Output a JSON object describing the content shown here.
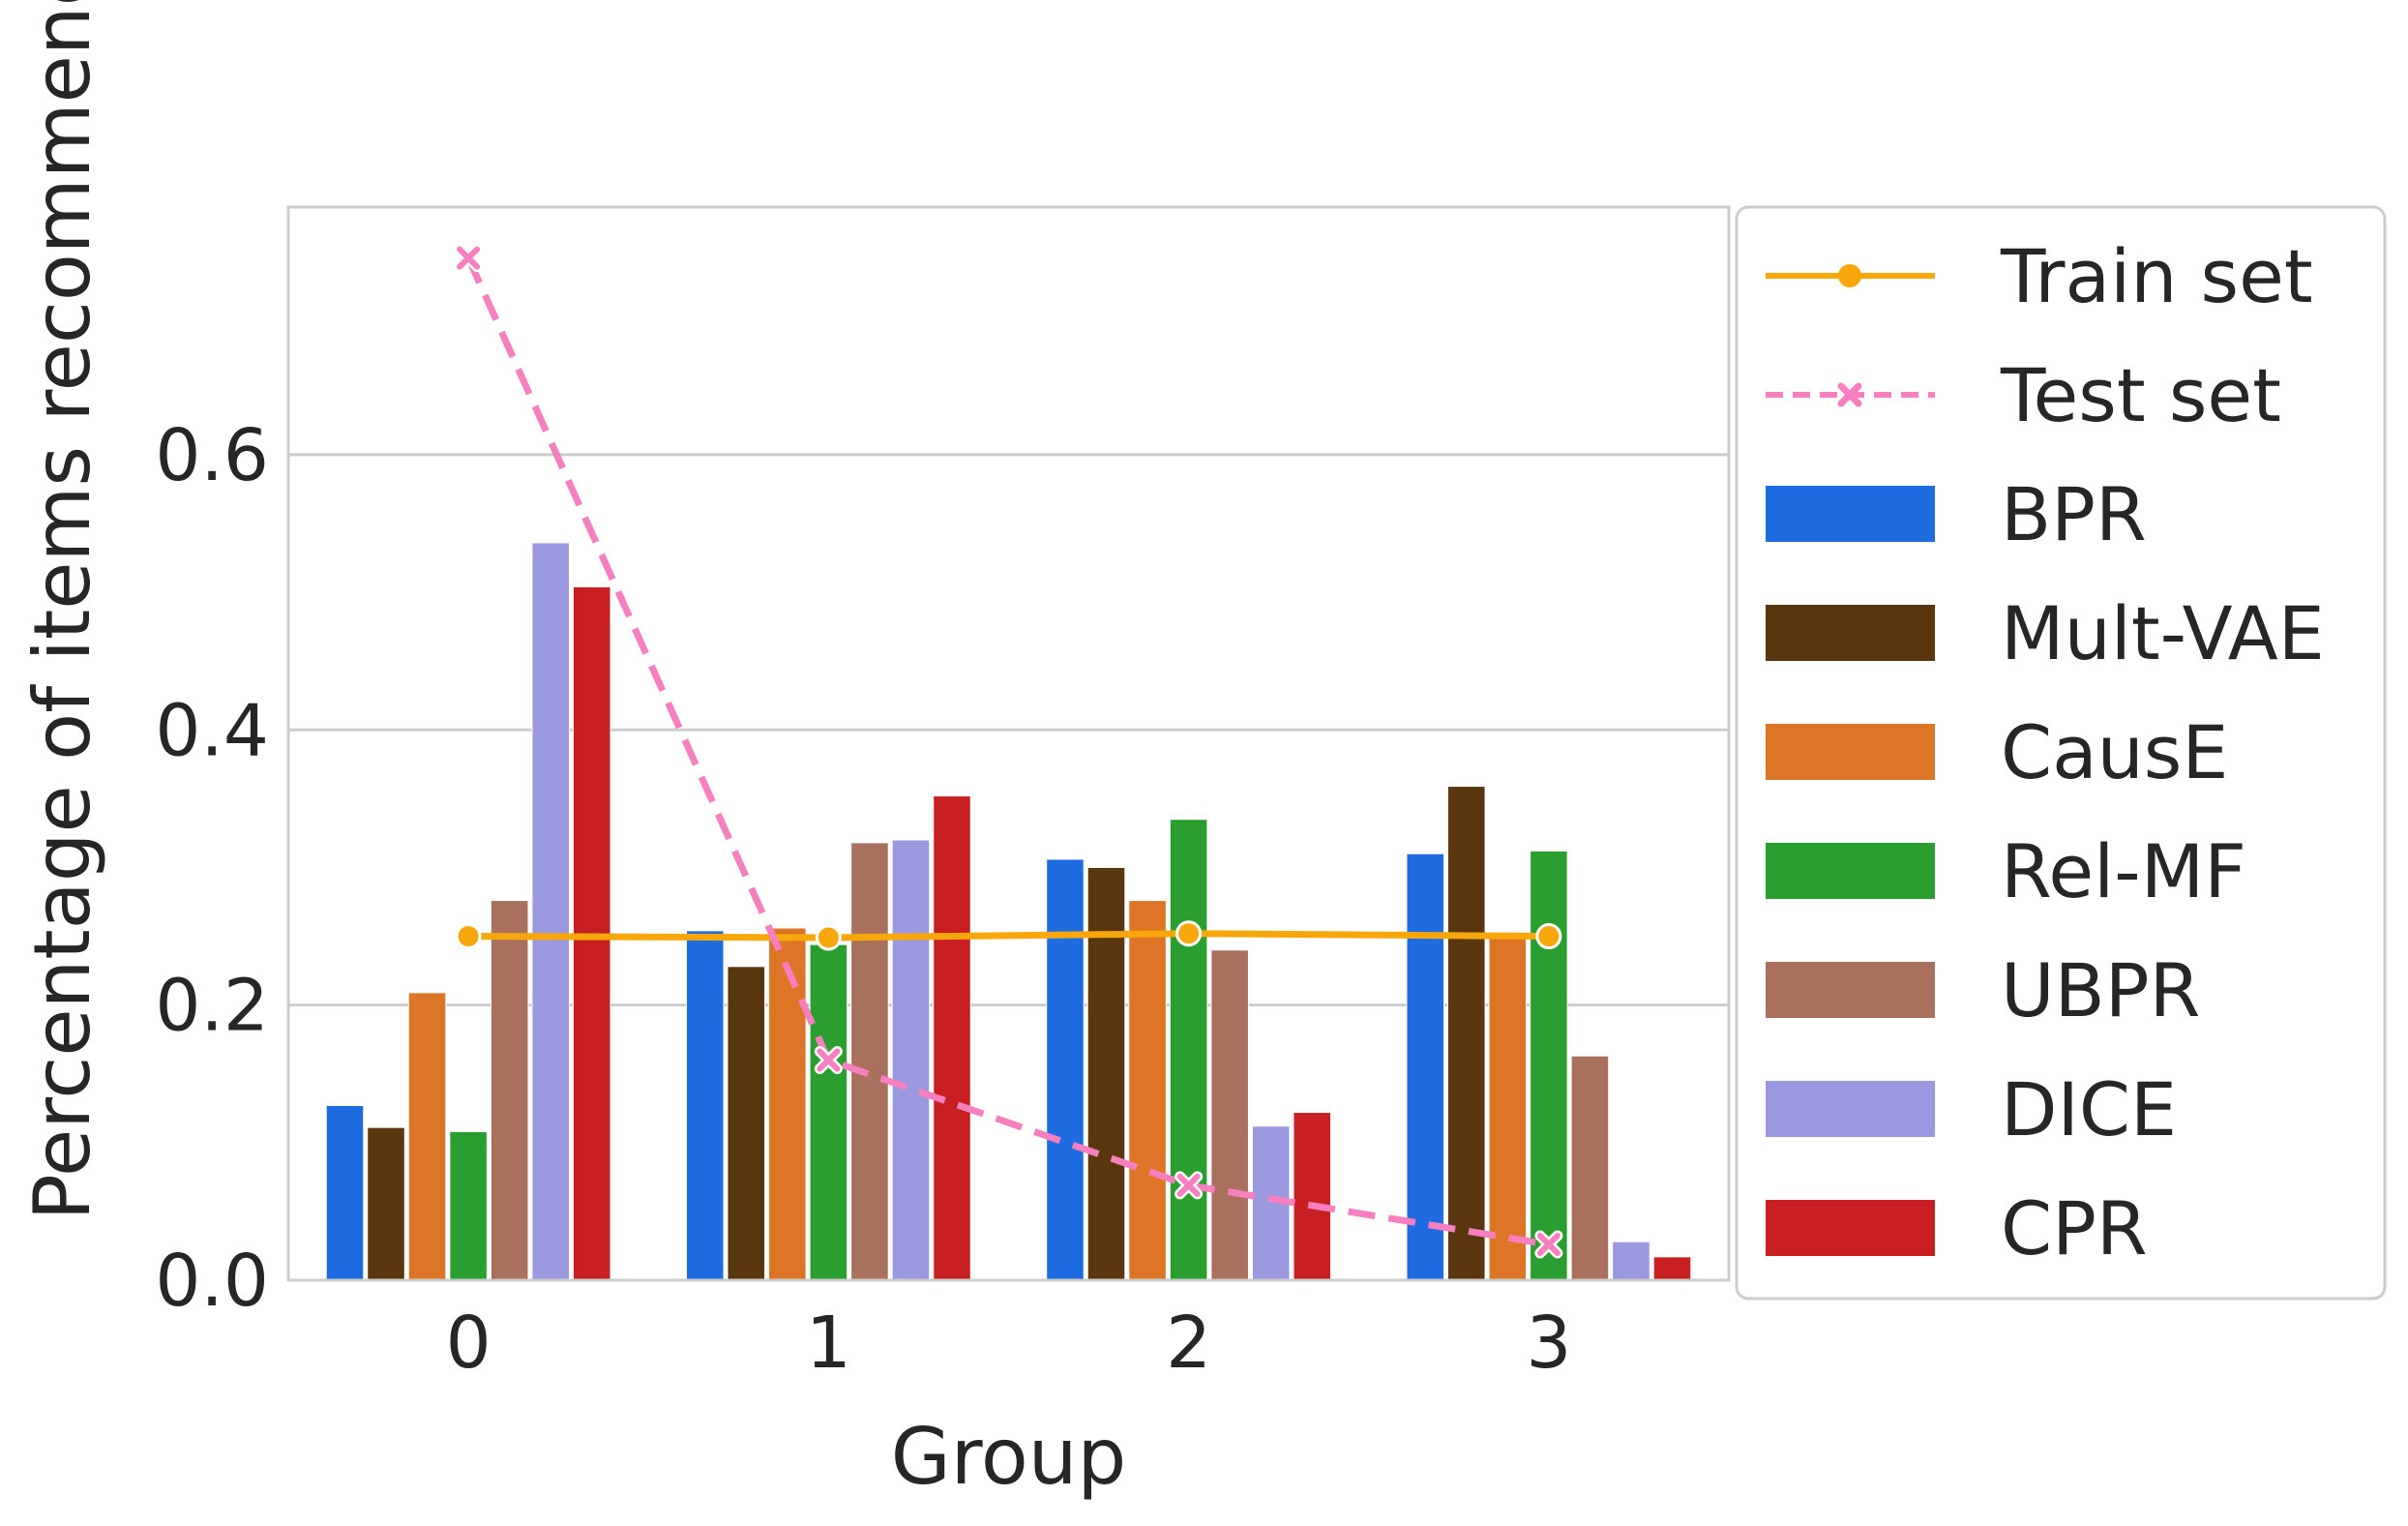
{
  "chart_data": {
    "type": "bar",
    "title": "",
    "xlabel": "Group",
    "ylabel": "Percentage of items recommended",
    "categories": [
      "0",
      "1",
      "2",
      "3"
    ],
    "ylim": [
      0,
      0.78
    ],
    "yticks": [
      0.0,
      0.2,
      0.4,
      0.6
    ],
    "ytick_labels": [
      "0.0",
      "0.2",
      "0.4",
      "0.6"
    ],
    "grid": "horizontal",
    "legend_position": "right, outside plot",
    "series": [
      {
        "name": "BPR",
        "color": "#1f6be0",
        "values": [
          0.127,
          0.254,
          0.306,
          0.31
        ]
      },
      {
        "name": "Mult-VAE",
        "color": "#59360e",
        "values": [
          0.111,
          0.228,
          0.3,
          0.359
        ]
      },
      {
        "name": "CausE",
        "color": "#dc7626",
        "values": [
          0.209,
          0.256,
          0.276,
          0.25
        ]
      },
      {
        "name": "Rel-MF",
        "color": "#2a9e2e",
        "values": [
          0.108,
          0.244,
          0.335,
          0.312
        ]
      },
      {
        "name": "UBPR",
        "color": "#a8705d",
        "values": [
          0.276,
          0.318,
          0.24,
          0.163
        ]
      },
      {
        "name": "DICE",
        "color": "#9a98de",
        "values": [
          0.536,
          0.32,
          0.112,
          0.028
        ]
      },
      {
        "name": "CPR",
        "color": "#c81f22",
        "values": [
          0.504,
          0.352,
          0.122,
          0.017
        ]
      }
    ],
    "lines": [
      {
        "name": "Train set",
        "color": "#f7a70c",
        "style": "solid",
        "marker": "circle",
        "values": [
          0.25,
          0.249,
          0.252,
          0.25
        ]
      },
      {
        "name": "Test set",
        "color": "#f57fbf",
        "style": "dashed",
        "marker": "x",
        "values": [
          0.743,
          0.16,
          0.069,
          0.026
        ]
      }
    ]
  }
}
